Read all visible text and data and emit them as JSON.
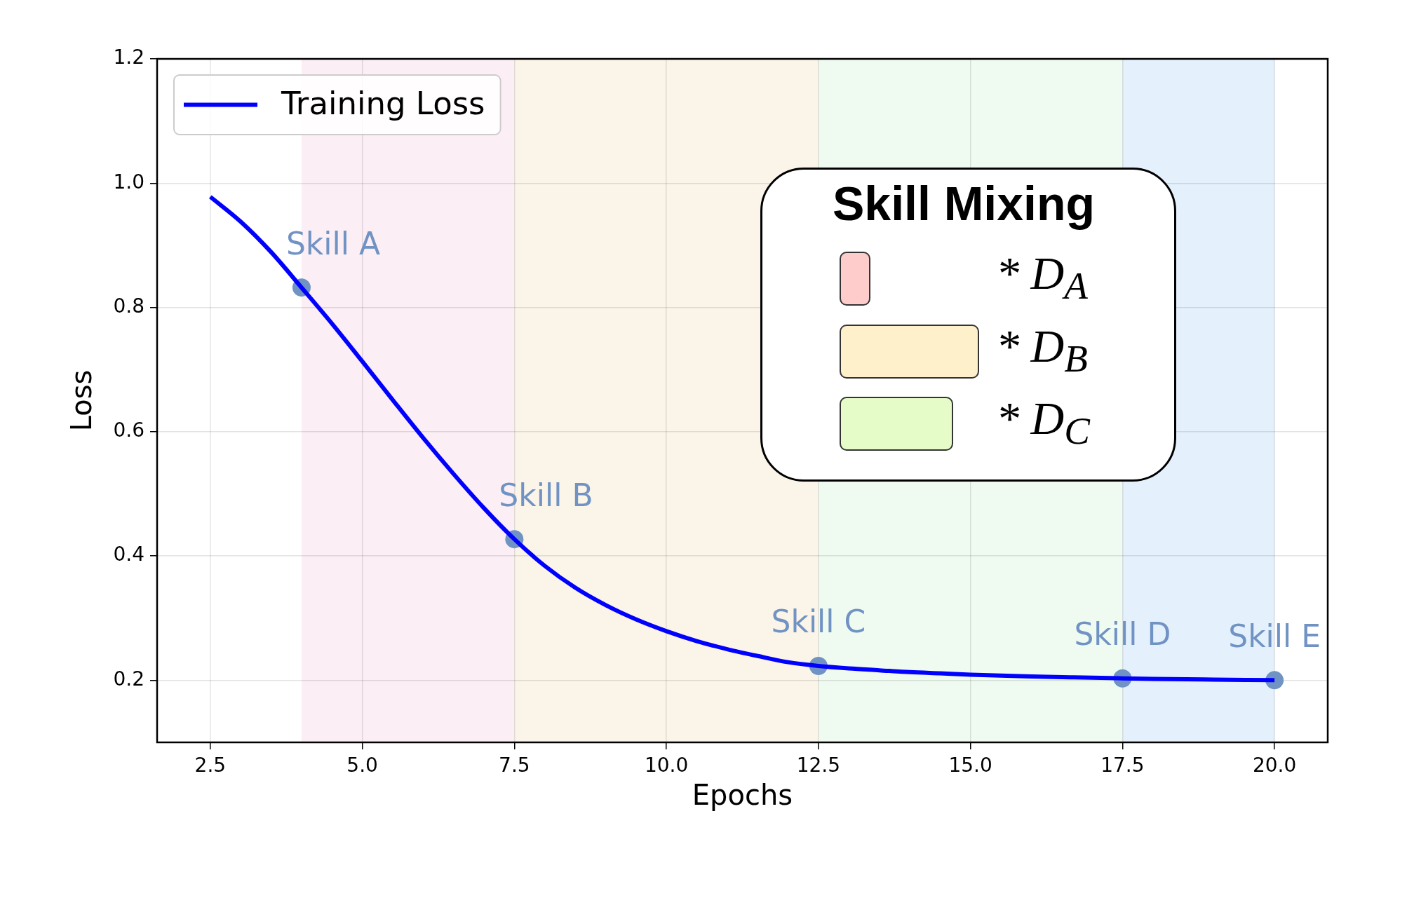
{
  "chart_data": {
    "type": "line",
    "xlabel": "Epochs",
    "ylabel": "Loss",
    "xlim": [
      1.625,
      20.875
    ],
    "ylim": [
      0.1,
      1.2
    ],
    "xticks": [
      2.5,
      {
        "value": 5,
        "label": "5.0"
      },
      7.5,
      {
        "value": 10,
        "label": "10.0"
      },
      12.5,
      {
        "value": 15,
        "label": "15.0"
      },
      17.5,
      {
        "value": 20,
        "label": "20.0"
      }
    ],
    "yticks": [
      0.2,
      0.4,
      0.6,
      0.8,
      {
        "value": 1,
        "label": "1.0"
      },
      1.2
    ],
    "grid": true,
    "legend": "top left",
    "series": [
      {
        "name": "Training Loss",
        "color": "#0000ff",
        "x": [
          2.5,
          3,
          3.5,
          4,
          4.5,
          5,
          5.5,
          6,
          6.5,
          7,
          7.5,
          8,
          8.5,
          9,
          9.5,
          10,
          10.5,
          11,
          11.5,
          12,
          12.5,
          13,
          13.5,
          14,
          14.5,
          15,
          16,
          17,
          17.5,
          18,
          19,
          20
        ],
        "values": [
          0.978,
          0.938,
          0.889,
          0.832,
          0.774,
          0.713,
          0.651,
          0.59,
          0.532,
          0.477,
          0.427,
          0.384,
          0.349,
          0.321,
          0.298,
          0.279,
          0.263,
          0.25,
          0.239,
          0.229,
          0.223,
          0.219,
          0.216,
          0.213,
          0.211,
          0.209,
          0.206,
          0.204,
          0.203,
          0.202,
          0.201,
          0.2
        ]
      },
      {
        "type": "scatter",
        "color": "#7093c4",
        "marker": "circle",
        "x": [
          4,
          7.5,
          12.5,
          17.5,
          20
        ],
        "values": [
          0.832,
          0.427,
          0.223,
          0.203,
          0.2
        ]
      }
    ],
    "bands": [
      {
        "axis": "x",
        "from": 4,
        "to": 7.5,
        "color": "#fbeef4"
      },
      {
        "axis": "x",
        "from": 7.5,
        "to": 12.5,
        "color": "#fbf4e8"
      },
      {
        "axis": "x",
        "from": 12.5,
        "to": 17.5,
        "color": "#effbf1"
      },
      {
        "axis": "x",
        "from": 17.5,
        "to": 20,
        "color": "#e4f1fc"
      }
    ],
    "annotations": [
      {
        "text": "Skill A",
        "x": 4,
        "y": 0.832
      },
      {
        "text": "Skill B",
        "x": 7.5,
        "y": 0.427
      },
      {
        "text": "Skill C",
        "x": 12.5,
        "y": 0.223
      },
      {
        "text": "Skill D",
        "x": 17.5,
        "y": 0.203
      },
      {
        "text": "Skill E",
        "x": 20,
        "y": 0.2
      },
      "Skill Mixing",
      "* D$_{A}$",
      "* D$_{B}$",
      "* D$_{C}$"
    ]
  }
}
